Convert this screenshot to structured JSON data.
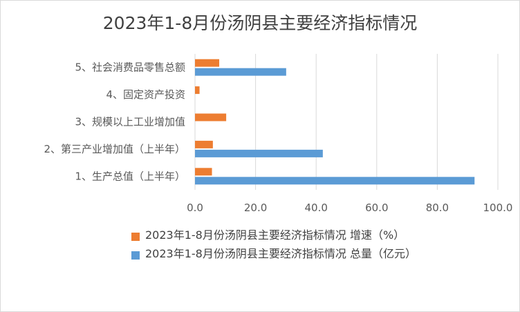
{
  "chart_data": {
    "type": "bar",
    "orientation": "horizontal",
    "title": "2023年1-8月份汤阴县主要经济指标情况",
    "categories": [
      "1、生产总值（上半年）",
      "2、第三产业增加值（上半年）",
      "3、规模以上工业增加值",
      "4、固定资产投资",
      "5、社会消费品零售总额"
    ],
    "series": [
      {
        "name": "2023年1-8月份汤阴县主要经济指标情况 增速（%）",
        "color": "#ED7D31",
        "values": [
          5.6,
          5.9,
          10.3,
          1.5,
          8.0
        ]
      },
      {
        "name": "2023年1-8月份汤阴县主要经济指标情况 总量（亿元）",
        "color": "#5B9BD5",
        "values": [
          92.3,
          42.2,
          null,
          null,
          30.1
        ]
      }
    ],
    "xlim": [
      0,
      100
    ],
    "xticks": [
      "0.0",
      "20.0",
      "40.0",
      "60.0",
      "80.0",
      "100.0"
    ],
    "grid": true,
    "legend_position": "bottom"
  }
}
